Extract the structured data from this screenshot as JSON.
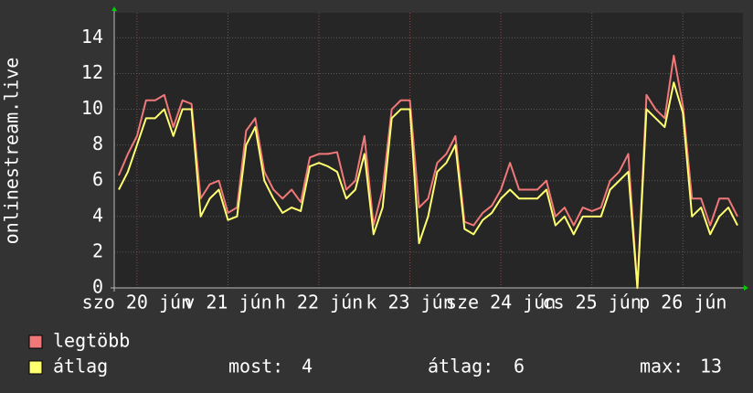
{
  "chart_data": {
    "type": "line",
    "y_label": "onlinestream.live",
    "xlim": [
      19.75,
      26.63
    ],
    "xticks": [
      {
        "value": 20,
        "label": "szo 20 jún"
      },
      {
        "value": 21,
        "label": "v 21 jún"
      },
      {
        "value": 22,
        "label": "h 22 jún"
      },
      {
        "value": 23,
        "label": "k 23 jún"
      },
      {
        "value": 24,
        "label": "sze 24 jún"
      },
      {
        "value": 25,
        "label": "cs 25 jún"
      },
      {
        "value": 26,
        "label": "p 26 jún"
      }
    ],
    "ylim": [
      0,
      15.4
    ],
    "yticks": [
      0,
      2,
      4,
      6,
      8,
      10,
      12,
      14
    ],
    "grid": true,
    "x": [
      19.8,
      19.9,
      20.0,
      20.1,
      20.2,
      20.3,
      20.4,
      20.5,
      20.6,
      20.7,
      20.8,
      20.9,
      21.0,
      21.1,
      21.2,
      21.3,
      21.4,
      21.5,
      21.6,
      21.7,
      21.8,
      21.9,
      22.0,
      22.1,
      22.2,
      22.3,
      22.4,
      22.5,
      22.6,
      22.7,
      22.8,
      22.9,
      23.0,
      23.1,
      23.2,
      23.3,
      23.4,
      23.5,
      23.6,
      23.7,
      23.8,
      23.9,
      24.0,
      24.1,
      24.2,
      24.3,
      24.4,
      24.5,
      24.6,
      24.7,
      24.8,
      24.9,
      25.0,
      25.1,
      25.2,
      25.3,
      25.4,
      25.5,
      25.6,
      25.7,
      25.8,
      25.9,
      26.0,
      26.1,
      26.2,
      26.3,
      26.4,
      26.5,
      26.6
    ],
    "series": [
      {
        "name": "legtöbb",
        "color": "#f07878",
        "values": [
          6.3,
          7.5,
          8.5,
          10.5,
          10.5,
          10.8,
          9,
          10.5,
          10.3,
          5,
          5.8,
          6,
          4.2,
          4.5,
          8.8,
          9.5,
          6.5,
          5.5,
          5,
          5.5,
          4.8,
          7.3,
          7.5,
          7.5,
          7.6,
          5.5,
          6,
          8.5,
          3.5,
          5.5,
          10,
          10.5,
          10.5,
          4.5,
          5,
          7,
          7.5,
          8.5,
          3.7,
          3.5,
          4.2,
          4.6,
          5.5,
          7,
          5.5,
          5.5,
          5.5,
          6,
          4,
          4.5,
          3.5,
          4.5,
          4.3,
          4.5,
          6,
          6.5,
          7.5,
          0,
          10.8,
          10,
          9.5,
          13,
          10.2,
          5,
          5,
          3.5,
          5,
          5,
          4
        ]
      },
      {
        "name": "átlag",
        "color": "#ffff70",
        "values": [
          5.5,
          6.5,
          8,
          9.5,
          9.5,
          10,
          8.5,
          10,
          10,
          4,
          5,
          5.5,
          3.8,
          4,
          8,
          9,
          6,
          5,
          4.2,
          4.5,
          4.3,
          6.8,
          7,
          6.8,
          6.5,
          5,
          5.5,
          7.5,
          3,
          4.5,
          9.5,
          10,
          10,
          2.5,
          4,
          6.5,
          7,
          8,
          3.3,
          3,
          3.8,
          4.2,
          5,
          5.5,
          5,
          5,
          5,
          5.5,
          3.5,
          4,
          3,
          4,
          4,
          4,
          5.5,
          6,
          6.5,
          0,
          10,
          9.5,
          9,
          11.5,
          9.8,
          4,
          4.5,
          3,
          4,
          4.5,
          3.5
        ]
      }
    ],
    "stats": [
      {
        "label": "most:",
        "value": 4
      },
      {
        "label": "átlag:",
        "value": 6
      },
      {
        "label": "max:",
        "value": 13
      }
    ]
  }
}
